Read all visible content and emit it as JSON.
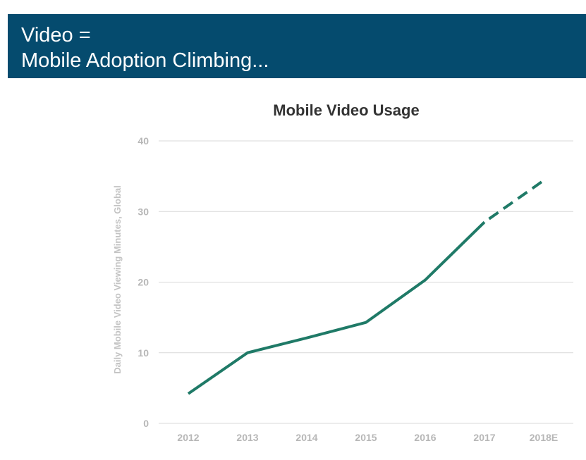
{
  "header": {
    "line1": "Video =",
    "line2": "Mobile Adoption Climbing..."
  },
  "colors": {
    "header_bg": "#054b6e",
    "series": "#1f7a67",
    "grid": "#d9d9d9",
    "tick_text": "#b7b7b7"
  },
  "chart_data": {
    "type": "line",
    "title": "Mobile Video Usage",
    "xlabel": "",
    "ylabel": "Daily Mobile Video Viewing Minutes, Global",
    "categories": [
      "2012",
      "2013",
      "2014",
      "2015",
      "2016",
      "2017",
      "2018E"
    ],
    "y_ticks": [
      "0",
      "10",
      "20",
      "30",
      "40"
    ],
    "ylim": [
      0,
      40
    ],
    "grid": true,
    "legend": "none",
    "series": [
      {
        "values": [
          4.2,
          10,
          12.1,
          14.3,
          20.3,
          28.5,
          34.4
        ],
        "projected_from_index": 5
      }
    ]
  }
}
